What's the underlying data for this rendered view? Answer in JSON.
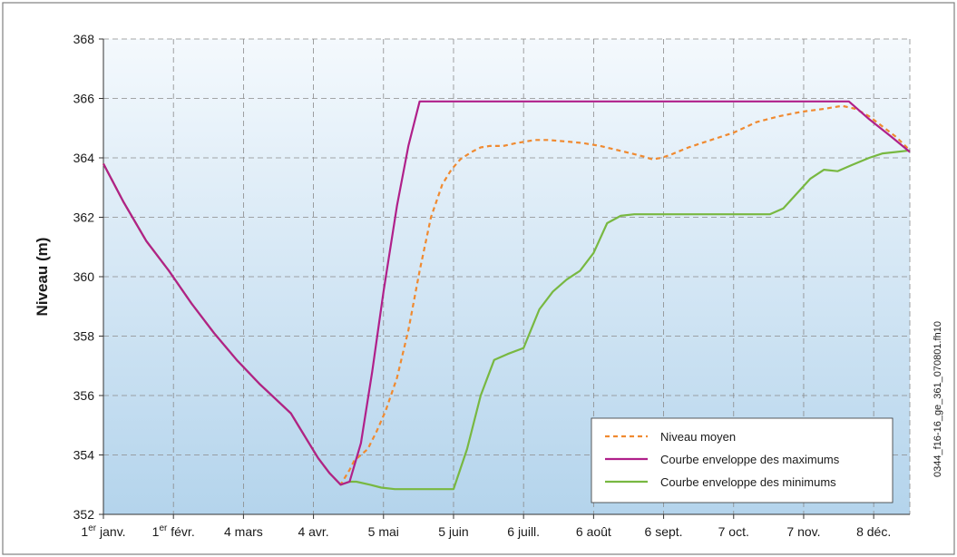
{
  "chart_data": {
    "type": "line",
    "ylabel": "Niveau (m)",
    "xlabel": "",
    "ylim": [
      352,
      368
    ],
    "yticks": [
      352,
      354,
      356,
      358,
      360,
      362,
      364,
      366,
      368
    ],
    "xlim": [
      1,
      358
    ],
    "xticks": [
      {
        "day": 1,
        "label": "1",
        "sup": "er",
        "rest": " janv."
      },
      {
        "day": 32,
        "label": "1",
        "sup": "er",
        "rest": " févr."
      },
      {
        "day": 63,
        "label": "4 mars",
        "sup": "",
        "rest": ""
      },
      {
        "day": 94,
        "label": "4 avr.",
        "sup": "",
        "rest": ""
      },
      {
        "day": 125,
        "label": "5 mai",
        "sup": "",
        "rest": ""
      },
      {
        "day": 156,
        "label": "5 juin",
        "sup": "",
        "rest": ""
      },
      {
        "day": 187,
        "label": "6 juill.",
        "sup": "",
        "rest": ""
      },
      {
        "day": 218,
        "label": "6 août",
        "sup": "",
        "rest": ""
      },
      {
        "day": 249,
        "label": "6 sept.",
        "sup": "",
        "rest": ""
      },
      {
        "day": 280,
        "label": "7 oct.",
        "sup": "",
        "rest": ""
      },
      {
        "day": 311,
        "label": "7 nov.",
        "sup": "",
        "rest": ""
      },
      {
        "day": 342,
        "label": "8 déc.",
        "sup": "",
        "rest": ""
      }
    ],
    "grid": true,
    "legend_position": "bottom-right",
    "side_text": "0344_f16-16_ge_361_070801.fh10",
    "series": [
      {
        "name": "Niveau moyen",
        "color": "#f08a30",
        "style": "dashed",
        "x": [
          1,
          10,
          20,
          30,
          40,
          50,
          60,
          70,
          77,
          84,
          88,
          92,
          96,
          101,
          106,
          110,
          112,
          118,
          122,
          126,
          131,
          136,
          141,
          146,
          151,
          155,
          159,
          164,
          168,
          172,
          178,
          184,
          188,
          192,
          198,
          206,
          213,
          221,
          232,
          240,
          244,
          248,
          252,
          260,
          270,
          280,
          290,
          300,
          310,
          320,
          328,
          334,
          340,
          346,
          352,
          358
        ],
        "y": [
          363.8,
          362.5,
          361.2,
          360.2,
          359.1,
          358.1,
          357.2,
          356.4,
          355.9,
          355.4,
          354.9,
          354.4,
          353.9,
          353.4,
          353.0,
          353.5,
          353.8,
          354.2,
          354.8,
          355.5,
          356.6,
          358.2,
          360.2,
          362.0,
          363.1,
          363.6,
          363.95,
          364.2,
          364.35,
          364.4,
          364.4,
          364.5,
          364.55,
          364.6,
          364.6,
          364.55,
          364.5,
          364.4,
          364.2,
          364.05,
          363.95,
          364.0,
          364.1,
          364.35,
          364.6,
          364.85,
          365.2,
          365.4,
          365.55,
          365.65,
          365.75,
          365.65,
          365.4,
          365.05,
          364.7,
          364.25
        ]
      },
      {
        "name": "Courbe enveloppe des maximums",
        "color": "#b0208a",
        "style": "solid",
        "x": [
          1,
          10,
          20,
          30,
          40,
          50,
          60,
          70,
          77,
          84,
          88,
          92,
          96,
          101,
          106,
          110,
          115,
          120,
          125,
          131,
          136,
          141,
          144,
          190,
          240,
          290,
          320,
          331,
          340,
          350,
          358
        ],
        "y": [
          363.8,
          362.5,
          361.2,
          360.2,
          359.1,
          358.1,
          357.2,
          356.4,
          355.9,
          355.4,
          354.9,
          354.4,
          353.9,
          353.4,
          353.0,
          353.1,
          354.4,
          356.8,
          359.5,
          362.4,
          364.4,
          365.9,
          365.9,
          365.9,
          365.9,
          365.9,
          365.9,
          365.9,
          365.3,
          364.7,
          364.2
        ]
      },
      {
        "name": "Courbe enveloppe des minimums",
        "color": "#78b841",
        "style": "solid",
        "x": [
          1,
          10,
          20,
          30,
          40,
          50,
          60,
          70,
          77,
          84,
          88,
          92,
          96,
          101,
          106,
          110,
          113,
          119,
          124,
          130,
          140,
          150,
          156,
          162,
          168,
          174,
          180,
          187,
          194,
          200,
          206,
          212,
          218,
          224,
          230,
          236,
          244,
          250,
          258,
          268,
          278,
          288,
          296,
          302,
          308,
          314,
          320,
          326,
          332,
          340,
          346,
          352,
          358
        ],
        "y": [
          363.8,
          362.5,
          361.2,
          360.2,
          359.1,
          358.1,
          357.2,
          356.4,
          355.9,
          355.4,
          354.9,
          354.4,
          353.9,
          353.4,
          353.0,
          353.1,
          353.1,
          353.0,
          352.9,
          352.85,
          352.85,
          352.85,
          352.85,
          354.2,
          356.0,
          357.2,
          357.4,
          357.6,
          358.9,
          359.5,
          359.9,
          360.2,
          360.8,
          361.8,
          362.05,
          362.1,
          362.1,
          362.1,
          362.1,
          362.1,
          362.1,
          362.1,
          362.1,
          362.3,
          362.8,
          363.3,
          363.6,
          363.55,
          363.75,
          364.0,
          364.15,
          364.2,
          364.25
        ]
      }
    ]
  }
}
